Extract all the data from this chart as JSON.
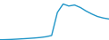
{
  "x": [
    2003,
    2004,
    2005,
    2006,
    2007,
    2008,
    2009,
    2010,
    2011,
    2012,
    2013,
    2014,
    2015,
    2016,
    2017,
    2018,
    2019,
    2020,
    2021,
    2022
  ],
  "y": [
    0.5,
    0.8,
    1.2,
    1.8,
    2.5,
    3.2,
    4.0,
    5.0,
    6.5,
    9.0,
    55.0,
    72.0,
    68.0,
    70.0,
    65.0,
    58.0,
    52.0,
    47.0,
    44.0,
    42.0
  ],
  "line_color": "#2196c8",
  "line_width": 1.0,
  "background_color": "#ffffff",
  "ylim": [
    0,
    80
  ],
  "xlim": [
    2003,
    2022
  ]
}
